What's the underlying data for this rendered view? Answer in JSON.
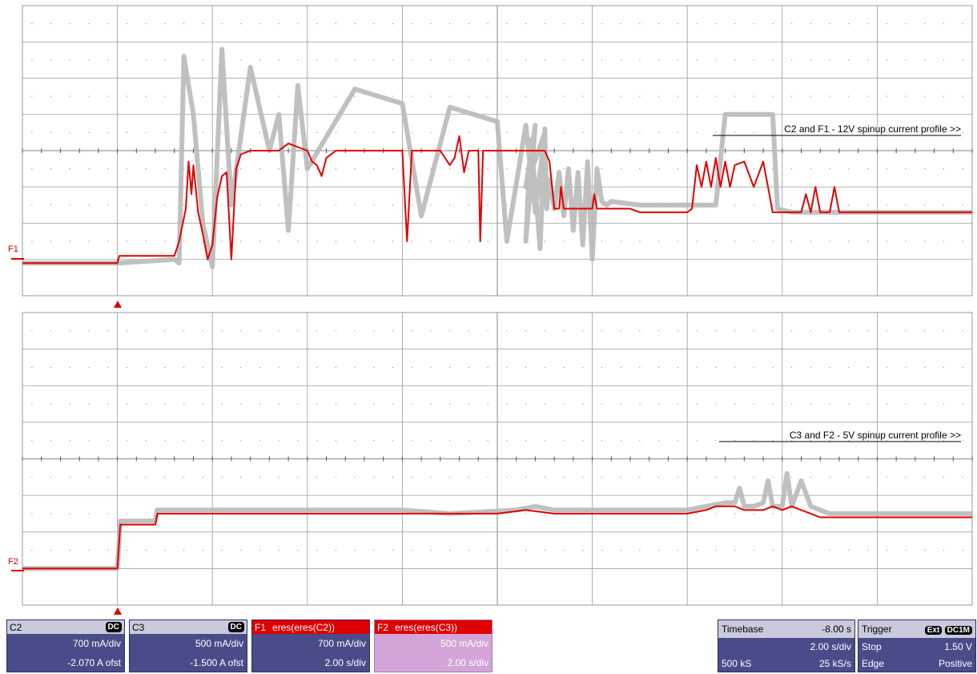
{
  "annotations": {
    "top": "C2 and F1 - 12V spinup current profile >>",
    "bottom": "C3 and F2 - 5V spinup current profile >>"
  },
  "trace_labels": {
    "f1": "F1",
    "f2": "F2"
  },
  "colors": {
    "grid": "#9a9a9a",
    "raw_trace": "#b9b9b9",
    "filtered_trace": "#e00000",
    "panel": "#4a4c8a"
  },
  "chart_data": [
    {
      "type": "line",
      "title": "C2 and F1 - 12V spinup current profile >>",
      "grid": true,
      "divisions": {
        "x": 10,
        "y": 8
      },
      "x_units": "div",
      "y_units": "div",
      "xlim": [
        0,
        10
      ],
      "ylim": [
        -4,
        4
      ],
      "trigger_x_div": 1.0,
      "series": [
        {
          "name": "C2",
          "color": "#b9b9b9",
          "points": [
            [
              0,
              -3.1
            ],
            [
              1.0,
              -3.1
            ],
            [
              1.6,
              -3.0
            ],
            [
              1.65,
              -3.1
            ],
            [
              1.7,
              2.6
            ],
            [
              1.8,
              1.0
            ],
            [
              1.9,
              -2.0
            ],
            [
              2.0,
              -3.2
            ],
            [
              2.1,
              2.8
            ],
            [
              2.2,
              -1.5
            ],
            [
              2.4,
              2.3
            ],
            [
              2.6,
              0.0
            ],
            [
              2.7,
              1.0
            ],
            [
              2.8,
              -2.2
            ],
            [
              2.9,
              1.8
            ],
            [
              3.0,
              -0.5
            ],
            [
              3.5,
              1.7
            ],
            [
              4.0,
              1.3
            ],
            [
              4.2,
              -1.8
            ],
            [
              4.5,
              1.2
            ],
            [
              5.0,
              0.8
            ],
            [
              5.1,
              -2.5
            ],
            [
              5.3,
              0.7
            ],
            [
              5.4,
              -1.7
            ],
            [
              5.5,
              0.5
            ],
            [
              5.3,
              -1.0
            ],
            [
              5.4,
              0.7
            ],
            [
              5.3,
              -2.5
            ],
            [
              5.35,
              0.3
            ],
            [
              5.4,
              -1.0
            ],
            [
              5.45,
              -2.7
            ],
            [
              5.5,
              0.6
            ],
            [
              5.52,
              -1.6
            ],
            [
              5.55,
              -0.8
            ],
            [
              5.6,
              -1.6
            ],
            [
              5.65,
              -0.6
            ],
            [
              5.7,
              -1.8
            ],
            [
              5.75,
              -0.5
            ],
            [
              5.8,
              -2.2
            ],
            [
              5.85,
              -0.6
            ],
            [
              5.9,
              -2.6
            ],
            [
              5.95,
              -0.3
            ],
            [
              6.0,
              -3.0
            ],
            [
              6.05,
              -0.5
            ],
            [
              6.1,
              -1.4
            ],
            [
              6.15,
              -1.5
            ],
            [
              6.2,
              -1.4
            ],
            [
              6.5,
              -1.5
            ],
            [
              7.0,
              -1.5
            ],
            [
              7.3,
              -1.5
            ],
            [
              7.4,
              1.0
            ],
            [
              7.9,
              1.0
            ],
            [
              7.95,
              -1.6
            ],
            [
              8.1,
              -1.7
            ],
            [
              10,
              -1.7
            ]
          ]
        },
        {
          "name": "F1",
          "color": "#e00000",
          "points": [
            [
              0,
              -3.1
            ],
            [
              1.0,
              -3.1
            ],
            [
              1.02,
              -2.9
            ],
            [
              1.6,
              -2.9
            ],
            [
              1.65,
              -2.5
            ],
            [
              1.72,
              -1.6
            ],
            [
              1.75,
              -0.3
            ],
            [
              1.78,
              -1.2
            ],
            [
              1.8,
              -0.4
            ],
            [
              1.85,
              -1.7
            ],
            [
              1.9,
              -2.3
            ],
            [
              1.95,
              -3.0
            ],
            [
              2.0,
              -2.6
            ],
            [
              2.05,
              -1.3
            ],
            [
              2.1,
              -0.7
            ],
            [
              2.15,
              -0.6
            ],
            [
              2.2,
              -3.0
            ],
            [
              2.25,
              -0.5
            ],
            [
              2.3,
              -0.1
            ],
            [
              2.4,
              0.0
            ],
            [
              2.6,
              0.0
            ],
            [
              2.7,
              0.0
            ],
            [
              2.8,
              0.2
            ],
            [
              2.9,
              0.1
            ],
            [
              3.0,
              0.0
            ],
            [
              3.05,
              -0.3
            ],
            [
              3.1,
              -0.4
            ],
            [
              3.15,
              -0.7
            ],
            [
              3.2,
              -0.2
            ],
            [
              3.3,
              0.0
            ],
            [
              3.5,
              0.0
            ],
            [
              3.6,
              0.0
            ],
            [
              3.7,
              0.0
            ],
            [
              4.0,
              0.0
            ],
            [
              4.05,
              -2.5
            ],
            [
              4.1,
              0.0
            ],
            [
              4.3,
              0.0
            ],
            [
              4.4,
              0.0
            ],
            [
              4.5,
              -0.4
            ],
            [
              4.55,
              -0.2
            ],
            [
              4.6,
              0.4
            ],
            [
              4.65,
              -0.6
            ],
            [
              4.7,
              0.0
            ],
            [
              4.8,
              0.0
            ],
            [
              4.82,
              -2.5
            ],
            [
              4.85,
              0.0
            ],
            [
              5.0,
              0.0
            ],
            [
              5.2,
              0.0
            ],
            [
              5.3,
              0.0
            ],
            [
              5.4,
              0.0
            ],
            [
              5.5,
              0.0
            ],
            [
              5.55,
              -0.3
            ],
            [
              5.6,
              -1.6
            ],
            [
              5.65,
              -1.6
            ],
            [
              5.67,
              -1.0
            ],
            [
              5.7,
              -1.6
            ],
            [
              6.0,
              -1.6
            ],
            [
              6.02,
              -1.2
            ],
            [
              6.05,
              -1.6
            ],
            [
              6.4,
              -1.6
            ],
            [
              6.5,
              -1.7
            ],
            [
              7.0,
              -1.7
            ],
            [
              7.05,
              -1.6
            ],
            [
              7.1,
              -0.4
            ],
            [
              7.15,
              -1.0
            ],
            [
              7.2,
              -0.3
            ],
            [
              7.25,
              -1.0
            ],
            [
              7.3,
              -0.2
            ],
            [
              7.35,
              -1.0
            ],
            [
              7.4,
              -0.3
            ],
            [
              7.45,
              -1.0
            ],
            [
              7.5,
              -0.4
            ],
            [
              7.6,
              -0.3
            ],
            [
              7.7,
              -1.0
            ],
            [
              7.8,
              -0.3
            ],
            [
              7.9,
              -1.7
            ],
            [
              7.95,
              -1.7
            ],
            [
              8.2,
              -1.7
            ],
            [
              8.25,
              -1.2
            ],
            [
              8.3,
              -1.7
            ],
            [
              8.35,
              -1.0
            ],
            [
              8.4,
              -1.7
            ],
            [
              8.5,
              -1.7
            ],
            [
              8.55,
              -1.0
            ],
            [
              8.6,
              -1.7
            ],
            [
              10,
              -1.7
            ]
          ]
        }
      ]
    },
    {
      "type": "line",
      "title": "C3 and F2 - 5V spinup current profile >>",
      "grid": true,
      "divisions": {
        "x": 10,
        "y": 8
      },
      "x_units": "div",
      "y_units": "div",
      "xlim": [
        0,
        10
      ],
      "ylim": [
        -4,
        4
      ],
      "trigger_x_div": 1.0,
      "series": [
        {
          "name": "C3",
          "color": "#b9b9b9",
          "points": [
            [
              0,
              -3.0
            ],
            [
              1.0,
              -3.0
            ],
            [
              1.03,
              -1.7
            ],
            [
              1.4,
              -1.7
            ],
            [
              1.42,
              -1.4
            ],
            [
              2.0,
              -1.4
            ],
            [
              4.0,
              -1.4
            ],
            [
              4.5,
              -1.5
            ],
            [
              5.2,
              -1.4
            ],
            [
              5.4,
              -1.3
            ],
            [
              5.6,
              -1.4
            ],
            [
              6.0,
              -1.4
            ],
            [
              7.0,
              -1.4
            ],
            [
              7.2,
              -1.3
            ],
            [
              7.4,
              -1.2
            ],
            [
              7.5,
              -1.2
            ],
            [
              7.55,
              -0.8
            ],
            [
              7.6,
              -1.3
            ],
            [
              7.7,
              -1.3
            ],
            [
              7.8,
              -1.2
            ],
            [
              7.85,
              -0.6
            ],
            [
              7.9,
              -1.3
            ],
            [
              8.0,
              -1.3
            ],
            [
              8.05,
              -0.4
            ],
            [
              8.1,
              -1.3
            ],
            [
              8.2,
              -0.6
            ],
            [
              8.3,
              -1.3
            ],
            [
              8.4,
              -1.4
            ],
            [
              8.5,
              -1.5
            ],
            [
              10,
              -1.5
            ]
          ]
        },
        {
          "name": "F2",
          "color": "#e00000",
          "points": [
            [
              0,
              -3.0
            ],
            [
              1.0,
              -3.0
            ],
            [
              1.03,
              -1.8
            ],
            [
              1.4,
              -1.8
            ],
            [
              1.42,
              -1.5
            ],
            [
              2.0,
              -1.5
            ],
            [
              3.0,
              -1.5
            ],
            [
              4.0,
              -1.5
            ],
            [
              5.0,
              -1.5
            ],
            [
              5.3,
              -1.4
            ],
            [
              5.6,
              -1.5
            ],
            [
              6.0,
              -1.5
            ],
            [
              7.0,
              -1.5
            ],
            [
              7.2,
              -1.4
            ],
            [
              7.3,
              -1.3
            ],
            [
              7.5,
              -1.3
            ],
            [
              7.6,
              -1.4
            ],
            [
              7.8,
              -1.4
            ],
            [
              7.9,
              -1.3
            ],
            [
              8.0,
              -1.4
            ],
            [
              8.1,
              -1.3
            ],
            [
              8.2,
              -1.4
            ],
            [
              8.3,
              -1.5
            ],
            [
              8.4,
              -1.6
            ],
            [
              10,
              -1.6
            ]
          ]
        }
      ]
    }
  ],
  "channels": [
    {
      "id": "C2",
      "coupling": "DC",
      "scale": "700 mA/div",
      "offset": "-2.070 A ofst"
    },
    {
      "id": "C3",
      "coupling": "DC",
      "scale": "500 mA/div",
      "offset": "-1.500 A ofst"
    },
    {
      "id": "F1",
      "func": "eres(eres(C2))",
      "scale": "700 mA/div",
      "rate": "2.00 s/div"
    },
    {
      "id": "F2",
      "func": "eres(eres(C3))",
      "scale": "500 mA/div",
      "rate": "2.00 s/div"
    }
  ],
  "timebase": {
    "label": "Timebase",
    "delay": "-8.00 s",
    "rate": "2.00 s/div",
    "samples": "500 kS",
    "sample_rate": "25 kS/s"
  },
  "trigger": {
    "label": "Trigger",
    "source_badge": "Ext",
    "coupling_badge": "DC1M",
    "mode": "Stop",
    "level": "1.50 V",
    "type": "Edge",
    "slope": "Positive"
  }
}
